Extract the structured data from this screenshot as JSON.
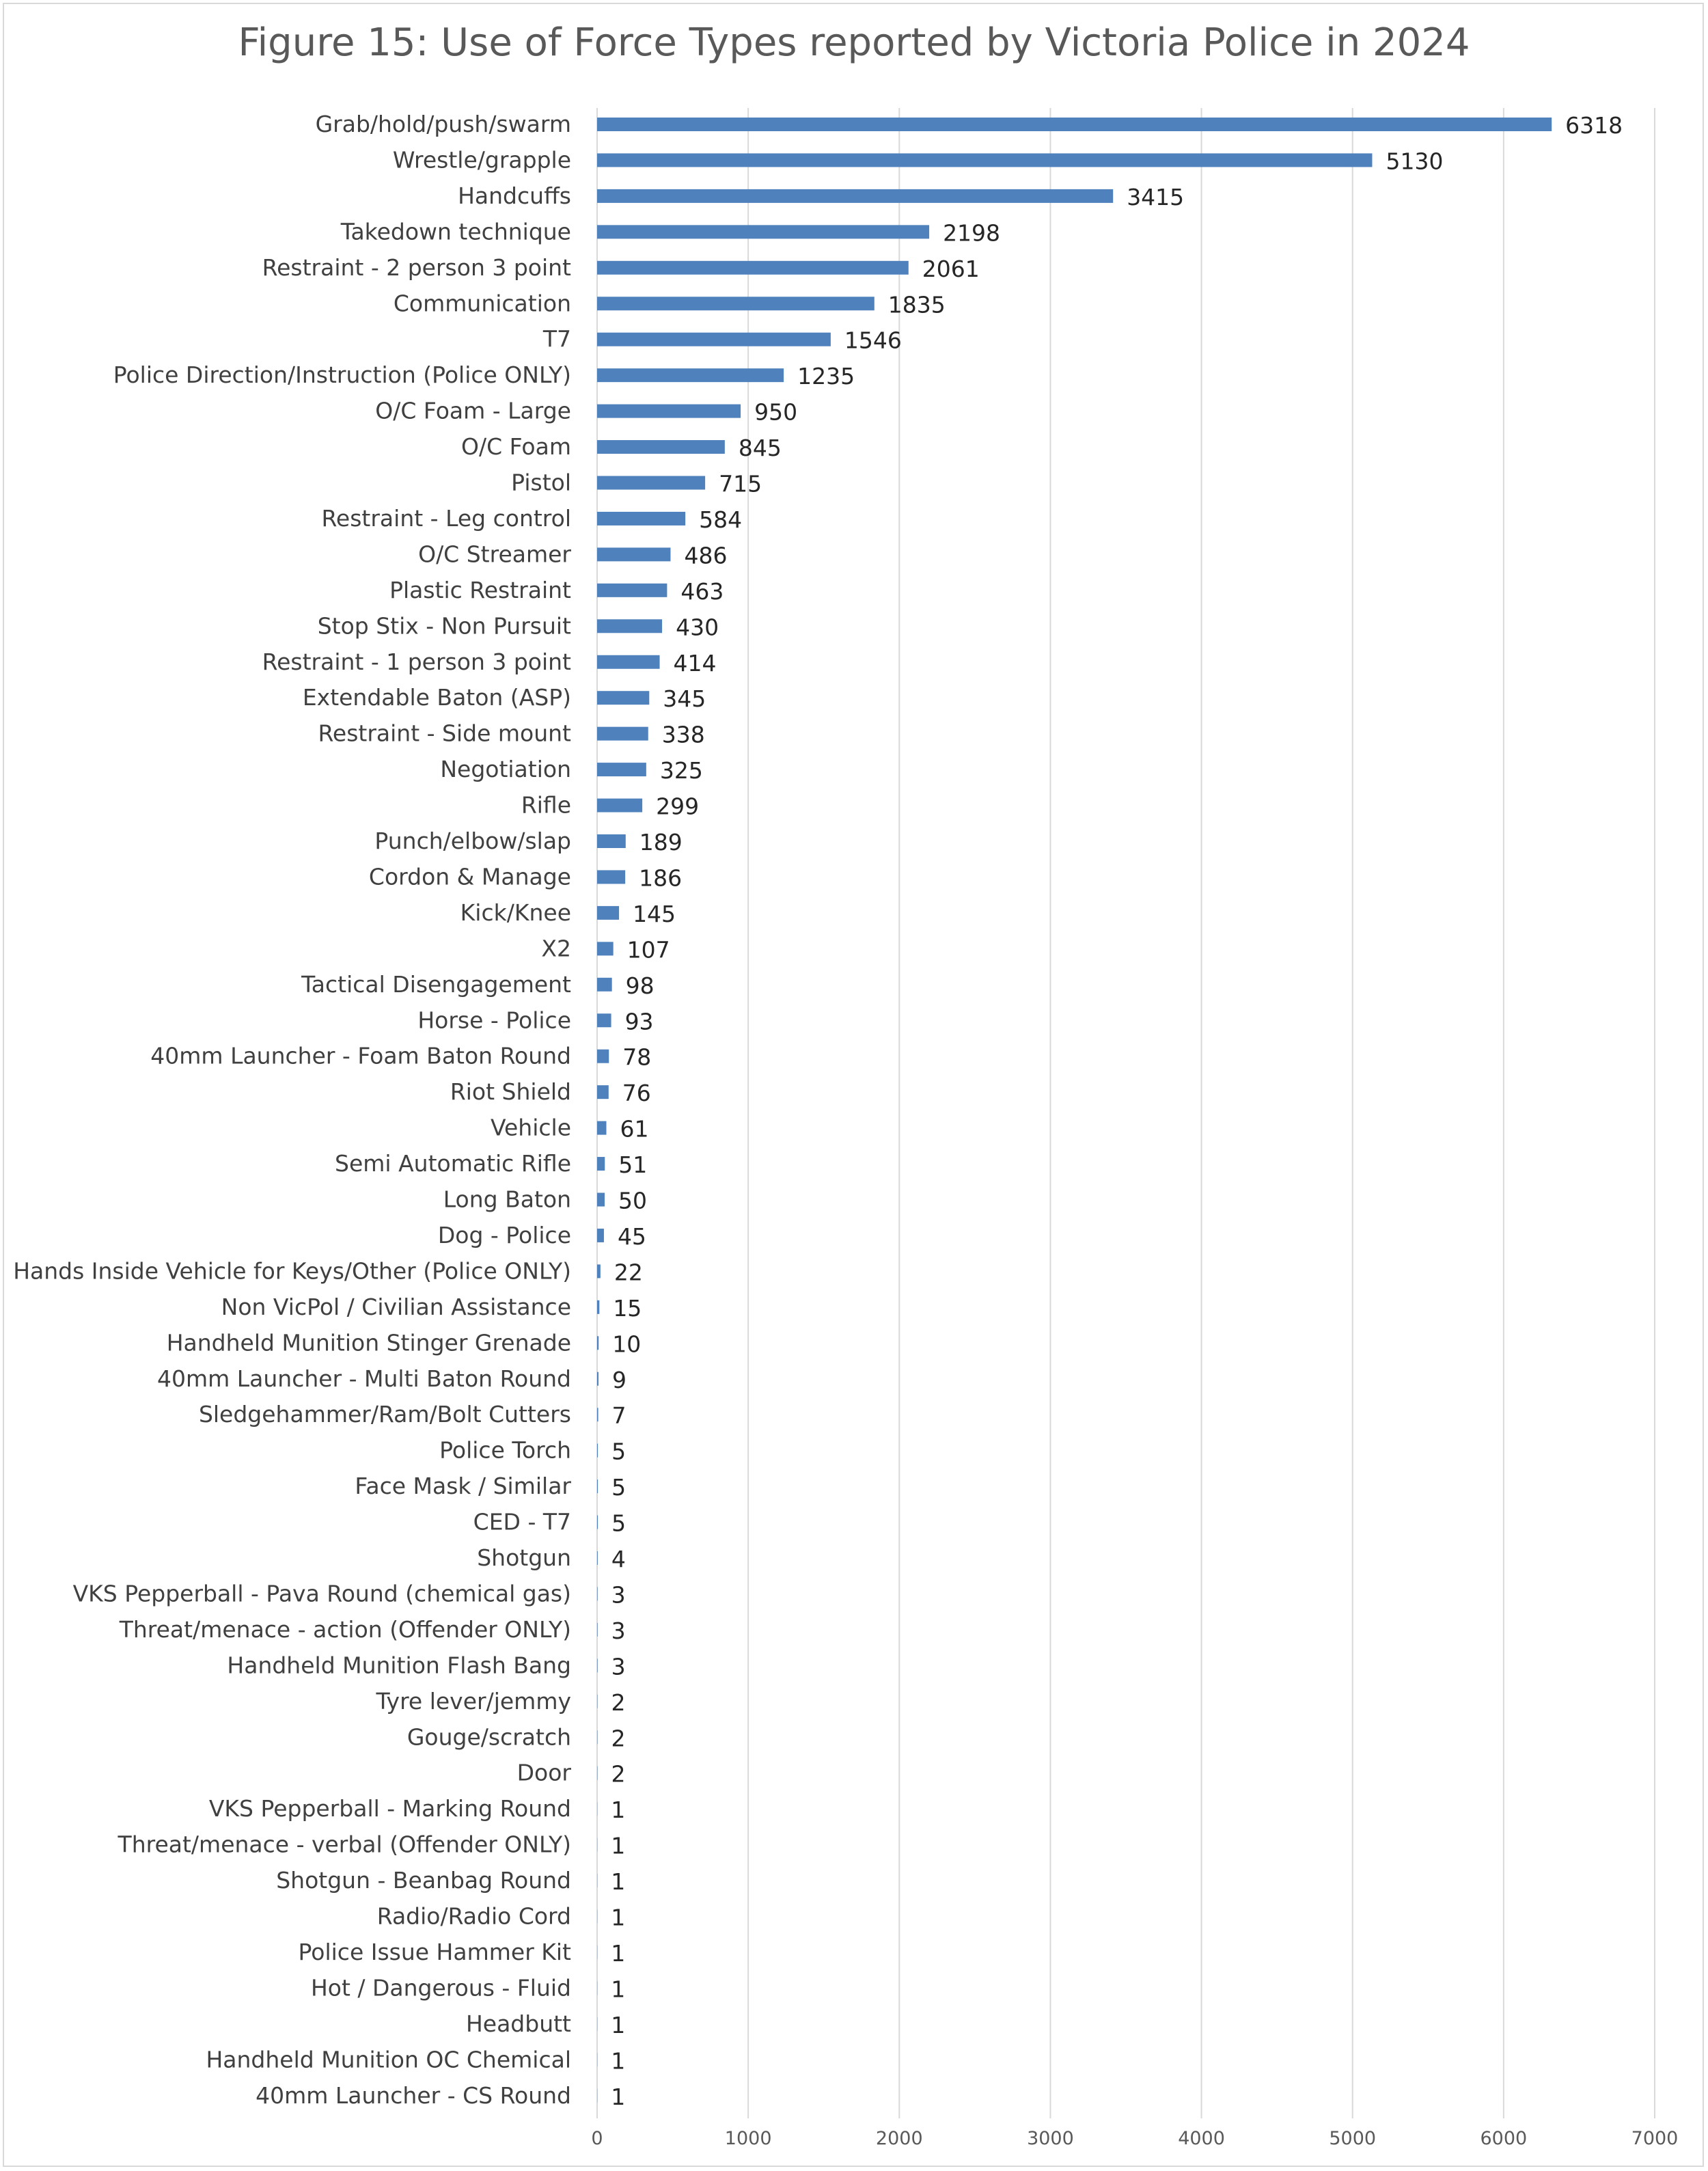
{
  "chart_data": {
    "type": "bar",
    "orientation": "horizontal",
    "title": "Figure 15: Use of Force Types reported by Victoria Police in 2024",
    "xlabel": "",
    "ylabel": "",
    "xlim": [
      0,
      7000
    ],
    "xticks": [
      "0",
      "1000",
      "2000",
      "3000",
      "4000",
      "5000",
      "6000",
      "7000"
    ],
    "grid": true,
    "bar_color": "#4f81bd",
    "categories": [
      "Grab/hold/push/swarm",
      "Wrestle/grapple",
      "Handcuffs",
      "Takedown technique",
      "Restraint - 2 person 3 point",
      "Communication",
      "T7",
      "Police Direction/Instruction (Police ONLY)",
      "O/C Foam - Large",
      "O/C Foam",
      "Pistol",
      "Restraint - Leg control",
      "O/C Streamer",
      "Plastic Restraint",
      "Stop Stix - Non Pursuit",
      "Restraint - 1 person 3 point",
      "Extendable Baton (ASP)",
      "Restraint - Side mount",
      "Negotiation",
      "Rifle",
      "Punch/elbow/slap",
      "Cordon & Manage",
      "Kick/Knee",
      "X2",
      "Tactical Disengagement",
      "Horse - Police",
      "40mm Launcher - Foam Baton Round",
      "Riot Shield",
      "Vehicle",
      "Semi Automatic Rifle",
      "Long Baton",
      "Dog - Police",
      "Hands Inside Vehicle for Keys/Other (Police ONLY)",
      "Non VicPol / Civilian Assistance",
      "Handheld Munition Stinger Grenade",
      "40mm Launcher - Multi Baton Round",
      "Sledgehammer/Ram/Bolt Cutters",
      "Police Torch",
      "Face Mask / Similar",
      "CED - T7",
      "Shotgun",
      "VKS Pepperball - Pava Round (chemical gas)",
      "Threat/menace - action (Offender ONLY)",
      "Handheld Munition Flash Bang",
      "Tyre lever/jemmy",
      "Gouge/scratch",
      "Door",
      "VKS Pepperball - Marking Round",
      "Threat/menace - verbal (Offender ONLY)",
      "Shotgun - Beanbag Round",
      "Radio/Radio Cord",
      "Police Issue Hammer Kit",
      "Hot / Dangerous - Fluid",
      "Headbutt",
      "Handheld Munition OC Chemical",
      "40mm Launcher - CS Round"
    ],
    "values": [
      6318,
      5130,
      3415,
      2198,
      2061,
      1835,
      1546,
      1235,
      950,
      845,
      715,
      584,
      486,
      463,
      430,
      414,
      345,
      338,
      325,
      299,
      189,
      186,
      145,
      107,
      98,
      93,
      78,
      76,
      61,
      51,
      50,
      45,
      22,
      15,
      10,
      9,
      7,
      5,
      5,
      5,
      4,
      3,
      3,
      3,
      2,
      2,
      2,
      1,
      1,
      1,
      1,
      1,
      1,
      1,
      1,
      1
    ]
  }
}
